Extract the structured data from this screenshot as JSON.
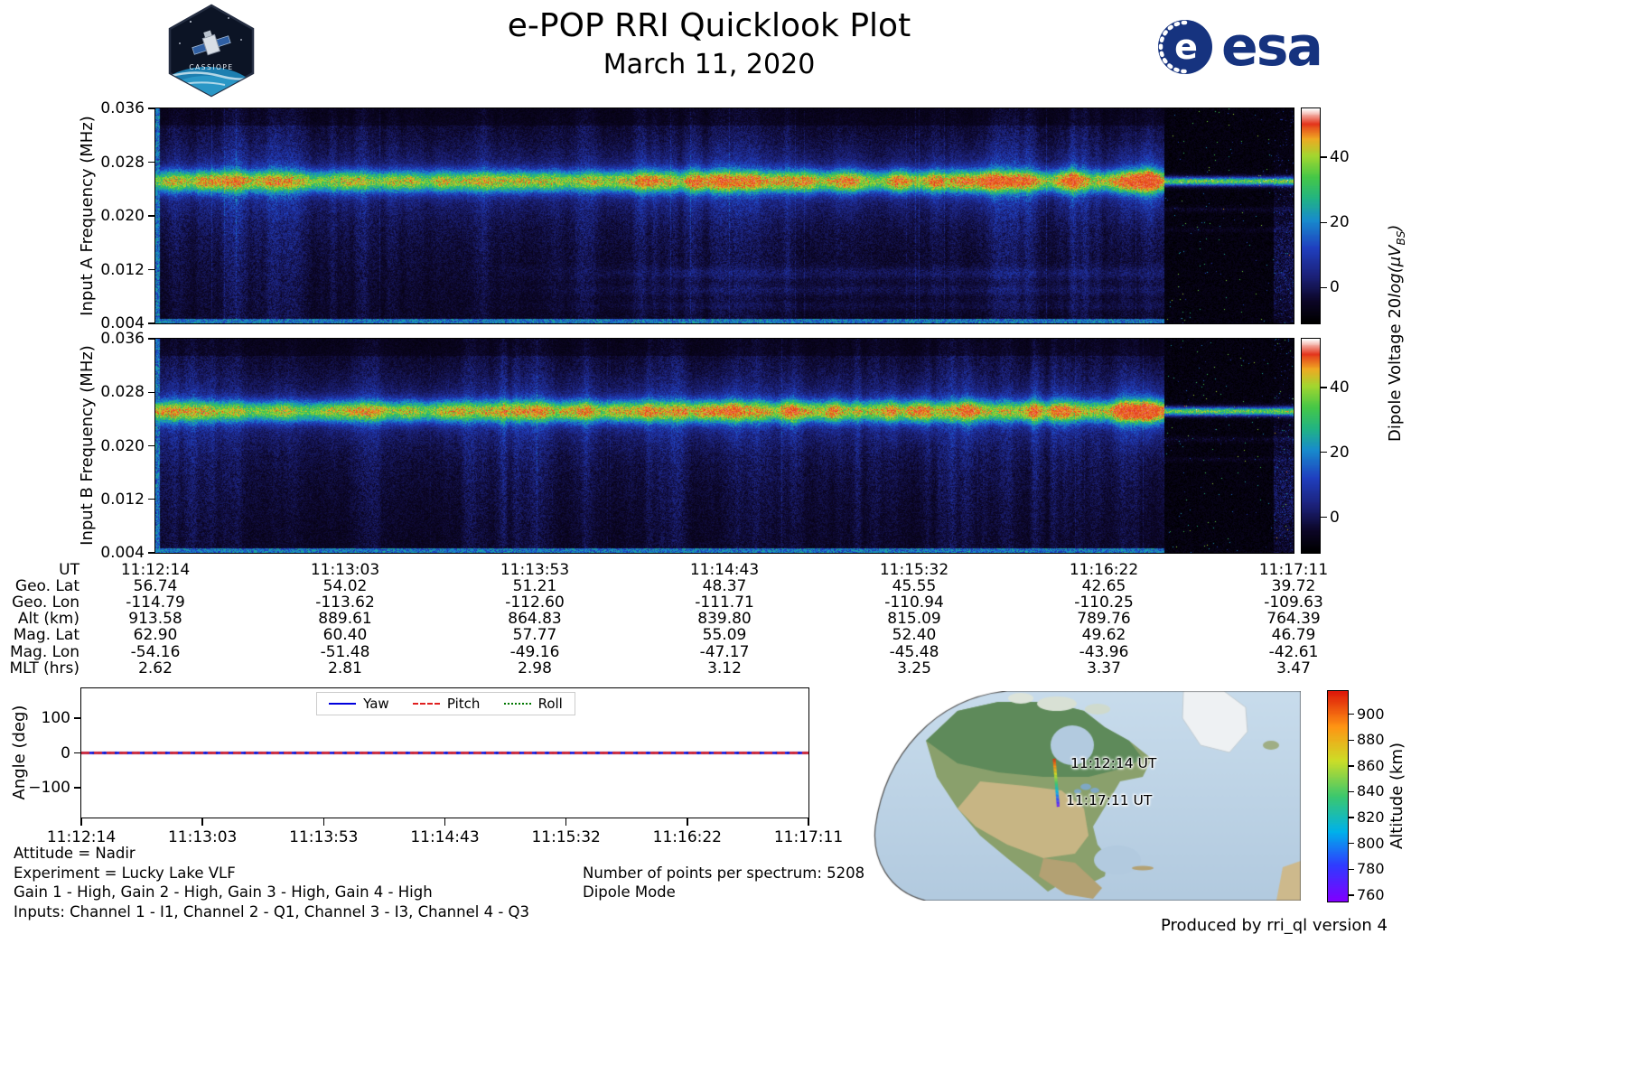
{
  "header": {
    "title": "e-POP RRI Quicklook Plot",
    "subtitle": "March 11, 2020",
    "esa_logo_text": "esa",
    "cassiope_label": "CASSIOPE"
  },
  "spectrograms": {
    "ytick_labels": [
      "0.036",
      "0.028",
      "0.020",
      "0.012",
      "0.004"
    ],
    "colorbar_tick_labels": [
      "40",
      "20",
      "0"
    ],
    "colorbar_label_parts": {
      "prefix": "Dipole Voltage 20",
      "italic": "log(μV",
      "sub": "BS",
      "suffix": ")"
    }
  },
  "angle_plot": {
    "ytick_labels": [
      "100",
      "0",
      "−100"
    ]
  },
  "footer": {
    "left_lines": [
      "Attitude = Nadir",
      "Experiment = Lucky Lake VLF",
      "Gain 1 - High, Gain 2 - High, Gain 3 - High, Gain 4 - High",
      "Inputs: Channel 1 - I1, Channel 2 - Q1, Channel 3 - I3, Channel 4 - Q3"
    ],
    "center_lines": [
      "Number of points per spectrum: 5208",
      "Dipole Mode"
    ]
  },
  "map_panel": {
    "altitude_tick_labels": [
      "900",
      "880",
      "860",
      "840",
      "820",
      "800",
      "780",
      "760"
    ]
  },
  "credit": "Produced by rri_ql version 4",
  "chart_data": [
    {
      "type": "heatmap",
      "name": "input_a_spectrogram",
      "ylabel": "Input A Frequency (MHz)",
      "ylim_mhz": [
        0.004,
        0.036
      ],
      "yticks_mhz": [
        0.036,
        0.028,
        0.02,
        0.012,
        0.004
      ],
      "time_start_ut": "11:12:14",
      "time_end_ut": "11:17:11",
      "colorbar": {
        "label": "Dipole Voltage 20log(μV_BS)",
        "ticks": [
          40,
          20,
          0
        ]
      },
      "features": [
        "persistent narrowband VLF emission near 0.025 MHz across the whole pass",
        "quasi-periodic brightenings of the 0.025 MHz band intensifying after ~11:14",
        "brightest yellow-green emission just before ~11:16:35",
        "near-black low-signal segment after ~11:16:35 with a thin residual 0.025 MHz line",
        "weak band structure below 0.012 MHz during the middle of the pass",
        "thin enhanced line along the 0.004 MHz bottom edge"
      ]
    },
    {
      "type": "heatmap",
      "name": "input_b_spectrogram",
      "ylabel": "Input B Frequency (MHz)",
      "ylim_mhz": [
        0.004,
        0.036
      ],
      "yticks_mhz": [
        0.036,
        0.028,
        0.02,
        0.012,
        0.004
      ],
      "time_start_ut": "11:12:14",
      "time_end_ut": "11:17:11",
      "colorbar": {
        "label": "Dipole Voltage 20log(μV_BS)",
        "ticks": [
          40,
          20,
          0
        ]
      },
      "features": [
        "persistent narrowband VLF emission near 0.025 MHz",
        "periodic brightenings strongest between ~11:15 and ~11:16:30",
        "near-black low-signal segment after ~11:16:35 with a thin residual line",
        "thin enhanced line along the 0.004 MHz bottom edge"
      ]
    },
    {
      "type": "line",
      "name": "attitude_angles",
      "ylabel": "Angle (deg)",
      "ylim": [
        -185,
        185
      ],
      "yticks": [
        100,
        0,
        -100
      ],
      "x": [
        "11:12:14",
        "11:13:03",
        "11:13:53",
        "11:14:43",
        "11:15:32",
        "11:16:22",
        "11:17:11"
      ],
      "series": [
        {
          "name": "Yaw",
          "color": "#0000dd",
          "style": "solid",
          "values": [
            0,
            0,
            0,
            0,
            0,
            0,
            0
          ]
        },
        {
          "name": "Pitch",
          "color": "#e02020",
          "style": "dashed",
          "values": [
            0,
            0,
            0,
            0,
            0,
            0,
            0
          ]
        },
        {
          "name": "Roll",
          "color": "#007700",
          "style": "dotted",
          "values": [
            0,
            0,
            0,
            0,
            0,
            0,
            0
          ]
        }
      ],
      "legend_position": "upper center"
    },
    {
      "type": "table",
      "name": "ephemeris",
      "rows": [
        {
          "label": "UT",
          "values": [
            "11:12:14",
            "11:13:03",
            "11:13:53",
            "11:14:43",
            "11:15:32",
            "11:16:22",
            "11:17:11"
          ]
        },
        {
          "label": "Geo. Lat",
          "values": [
            "56.74",
            "54.02",
            "51.21",
            "48.37",
            "45.55",
            "42.65",
            "39.72"
          ]
        },
        {
          "label": "Geo. Lon",
          "values": [
            "-114.79",
            "-113.62",
            "-112.60",
            "-111.71",
            "-110.94",
            "-110.25",
            "-109.63"
          ]
        },
        {
          "label": "Alt (km)",
          "values": [
            "913.58",
            "889.61",
            "864.83",
            "839.80",
            "815.09",
            "789.76",
            "764.39"
          ]
        },
        {
          "label": "Mag. Lat",
          "values": [
            "62.90",
            "60.40",
            "57.77",
            "55.09",
            "52.40",
            "49.62",
            "46.79"
          ]
        },
        {
          "label": "Mag. Lon",
          "values": [
            "-54.16",
            "-51.48",
            "-49.16",
            "-47.17",
            "-45.48",
            "-43.96",
            "-42.61"
          ]
        },
        {
          "label": "MLT (hrs)",
          "values": [
            "2.62",
            "2.81",
            "2.98",
            "3.12",
            "3.25",
            "3.37",
            "3.47"
          ]
        }
      ]
    },
    {
      "type": "map",
      "name": "ground_track",
      "region": "North America",
      "track_labels": [
        "11:12:14 UT",
        "11:17:11 UT"
      ],
      "track_start": {
        "ut": "11:12:14",
        "alt_km": 913.58
      },
      "track_end": {
        "ut": "11:17:11",
        "alt_km": 764.39
      },
      "colorbar": {
        "label": "Altitude (km)",
        "ticks": [
          900,
          880,
          860,
          840,
          820,
          800,
          780,
          760
        ]
      }
    }
  ]
}
